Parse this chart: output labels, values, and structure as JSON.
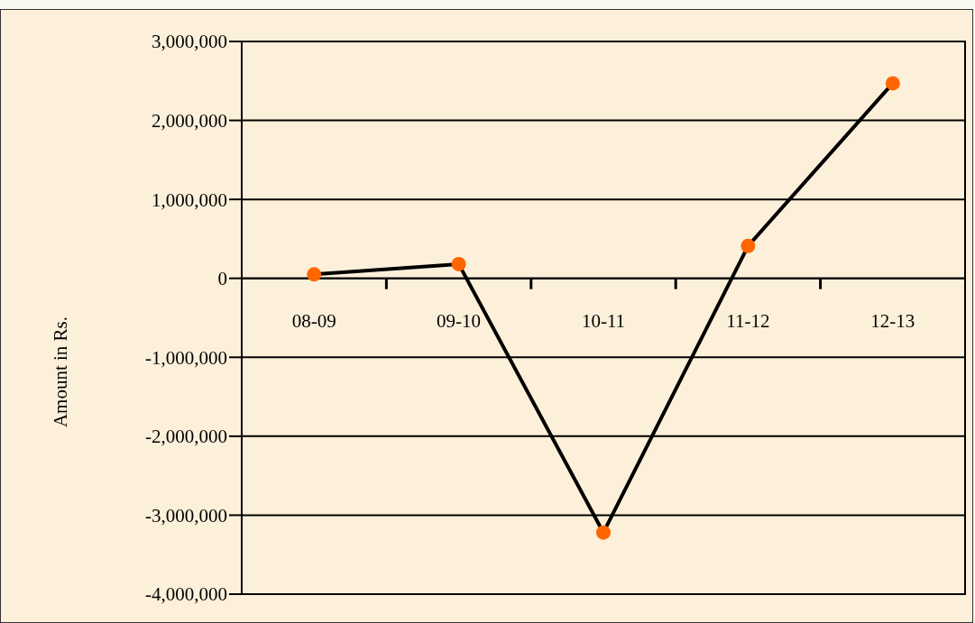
{
  "chart_data": {
    "type": "line",
    "ylabel": "Amount in Rs.",
    "categories": [
      "08-09",
      "09-10",
      "10-11",
      "11-12",
      "12-13"
    ],
    "series": [
      {
        "color": "#000000",
        "values": [
          50000,
          180000,
          -3220000,
          410000,
          2470000
        ]
      }
    ],
    "ylim": [
      -4000000,
      3000000
    ],
    "yticks": [
      {
        "value": -4000000,
        "label": "-4,000,000"
      },
      {
        "value": -3000000,
        "label": "-3,000,000"
      },
      {
        "value": -2000000,
        "label": "-2,000,000"
      },
      {
        "value": -1000000,
        "label": "-1,000,000"
      },
      0,
      {
        "value": 1000000,
        "label": "1,000,000"
      },
      {
        "value": 2000000,
        "label": "2,000,000"
      },
      {
        "value": 3000000,
        "label": "3,000,000"
      }
    ],
    "grid": "y",
    "marker": "circle",
    "line_style": "solid"
  }
}
